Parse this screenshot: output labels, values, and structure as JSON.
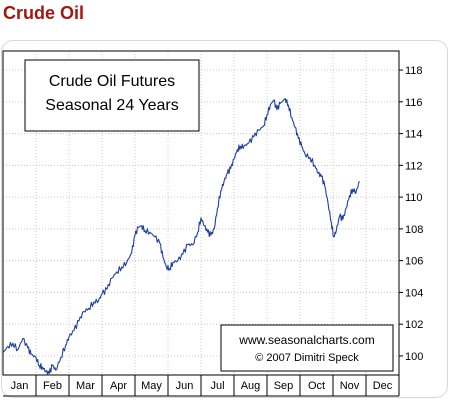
{
  "page": {
    "title": "Crude Oil"
  },
  "colors": {
    "title": "#a01810",
    "line": "#1f3f9f",
    "grid": "#c8c8c8",
    "frame": "#d8d8d8"
  },
  "chart_data": {
    "type": "line",
    "title_lines": [
      "Crude Oil Futures",
      "Seasonal 24 Years"
    ],
    "credit_lines": [
      "www.seasonalcharts.com",
      "© 2007  Dimitri Speck"
    ],
    "categories": [
      "Jan",
      "Feb",
      "Mar",
      "Apr",
      "May",
      "Jun",
      "Jul",
      "Aug",
      "Sep",
      "Oct",
      "Nov",
      "Dec"
    ],
    "y_ticks": [
      100,
      102,
      104,
      106,
      108,
      110,
      112,
      114,
      116,
      118
    ],
    "ylim": [
      98.8,
      119.2
    ],
    "grid": true,
    "series": [
      {
        "values": [
          [
            0.0,
            100.2
          ],
          [
            0.15,
            100.6
          ],
          [
            0.3,
            100.8
          ],
          [
            0.45,
            100.4
          ],
          [
            0.6,
            101.1
          ],
          [
            0.75,
            100.5
          ],
          [
            0.85,
            100.1
          ],
          [
            1.0,
            99.9
          ],
          [
            1.1,
            99.4
          ],
          [
            1.2,
            99.3
          ],
          [
            1.3,
            99.0
          ],
          [
            1.4,
            98.9
          ],
          [
            1.5,
            99.4
          ],
          [
            1.6,
            99.1
          ],
          [
            1.75,
            99.9
          ],
          [
            1.9,
            100.7
          ],
          [
            2.0,
            101.2
          ],
          [
            2.15,
            101.6
          ],
          [
            2.3,
            102.2
          ],
          [
            2.45,
            102.8
          ],
          [
            2.6,
            103.0
          ],
          [
            2.75,
            103.4
          ],
          [
            2.9,
            103.5
          ],
          [
            3.0,
            103.9
          ],
          [
            3.15,
            104.2
          ],
          [
            3.3,
            104.9
          ],
          [
            3.45,
            105.3
          ],
          [
            3.6,
            105.6
          ],
          [
            3.75,
            105.9
          ],
          [
            3.9,
            106.5
          ],
          [
            4.0,
            107.6
          ],
          [
            4.1,
            108.1
          ],
          [
            4.2,
            108.2
          ],
          [
            4.3,
            107.9
          ],
          [
            4.45,
            107.8
          ],
          [
            4.6,
            107.5
          ],
          [
            4.75,
            107.1
          ],
          [
            4.85,
            106.2
          ],
          [
            4.95,
            105.6
          ],
          [
            5.05,
            105.5
          ],
          [
            5.15,
            105.9
          ],
          [
            5.3,
            106.0
          ],
          [
            5.45,
            106.4
          ],
          [
            5.6,
            107.0
          ],
          [
            5.75,
            107.0
          ],
          [
            5.9,
            107.8
          ],
          [
            6.0,
            108.7
          ],
          [
            6.1,
            108.2
          ],
          [
            6.2,
            107.8
          ],
          [
            6.3,
            107.6
          ],
          [
            6.4,
            108.0
          ],
          [
            6.5,
            109.3
          ],
          [
            6.6,
            110.4
          ],
          [
            6.7,
            111.0
          ],
          [
            6.8,
            111.5
          ],
          [
            6.9,
            111.8
          ],
          [
            7.0,
            112.4
          ],
          [
            7.1,
            113.0
          ],
          [
            7.2,
            113.2
          ],
          [
            7.3,
            113.2
          ],
          [
            7.45,
            113.4
          ],
          [
            7.6,
            113.8
          ],
          [
            7.75,
            114.2
          ],
          [
            7.9,
            114.5
          ],
          [
            8.0,
            115.2
          ],
          [
            8.1,
            115.8
          ],
          [
            8.2,
            116.1
          ],
          [
            8.3,
            115.5
          ],
          [
            8.4,
            115.9
          ],
          [
            8.55,
            116.2
          ],
          [
            8.65,
            115.8
          ],
          [
            8.75,
            115.0
          ],
          [
            8.85,
            114.4
          ],
          [
            8.95,
            113.7
          ],
          [
            9.05,
            113.2
          ],
          [
            9.15,
            112.7
          ],
          [
            9.3,
            112.5
          ],
          [
            9.45,
            112.0
          ],
          [
            9.55,
            111.5
          ],
          [
            9.65,
            111.3
          ],
          [
            9.75,
            110.7
          ],
          [
            9.85,
            109.6
          ],
          [
            9.95,
            108.4
          ],
          [
            10.02,
            107.5
          ],
          [
            10.1,
            107.9
          ],
          [
            10.2,
            108.8
          ],
          [
            10.3,
            108.6
          ],
          [
            10.4,
            109.3
          ],
          [
            10.5,
            110.1
          ],
          [
            10.6,
            110.5
          ],
          [
            10.7,
            110.3
          ],
          [
            10.8,
            111.0
          ]
        ]
      }
    ]
  }
}
